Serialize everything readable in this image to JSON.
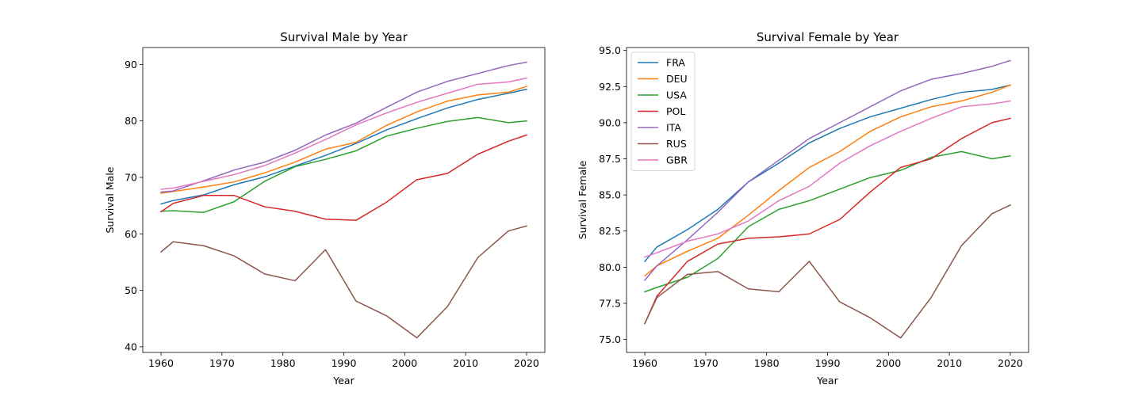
{
  "chart_data": [
    {
      "type": "line",
      "title": "Survival Male by Year",
      "xlabel": "Year",
      "ylabel": "Survival Male",
      "xlim": [
        1957,
        2023
      ],
      "ylim": [
        39,
        93
      ],
      "xticks": [
        1960,
        1970,
        1980,
        1990,
        2000,
        2010,
        2020
      ],
      "yticks": [
        40,
        50,
        60,
        70,
        80,
        90
      ],
      "ytick_labels": [
        "40",
        "50",
        "60",
        "70",
        "80",
        "90"
      ],
      "x": [
        1960,
        1962,
        1967,
        1972,
        1977,
        1982,
        1987,
        1992,
        1997,
        2002,
        2007,
        2012,
        2017,
        2020
      ],
      "legend": false,
      "series": [
        {
          "name": "FRA",
          "color": "#1f77b4",
          "values": [
            65.3,
            65.9,
            66.9,
            68.7,
            70.1,
            72.0,
            73.9,
            76.0,
            78.4,
            80.4,
            82.3,
            83.8,
            84.9,
            85.6
          ]
        },
        {
          "name": "DEU",
          "color": "#ff7f0e",
          "values": [
            67.2,
            67.5,
            68.3,
            69.2,
            70.8,
            72.7,
            75.0,
            76.2,
            79.2,
            81.6,
            83.5,
            84.6,
            85.1,
            86.1
          ]
        },
        {
          "name": "USA",
          "color": "#2ca02c",
          "values": [
            64.0,
            64.1,
            63.8,
            65.7,
            69.3,
            71.9,
            73.2,
            74.7,
            77.3,
            78.7,
            79.9,
            80.6,
            79.7,
            80.0
          ]
        },
        {
          "name": "POL",
          "color": "#d62728",
          "values": [
            63.9,
            65.4,
            66.8,
            66.8,
            64.8,
            64.0,
            62.6,
            62.4,
            65.6,
            69.6,
            70.7,
            74.1,
            76.4,
            77.5
          ]
        },
        {
          "name": "ITA",
          "color": "#9467bd",
          "values": [
            67.4,
            67.6,
            69.4,
            71.3,
            72.7,
            74.8,
            77.5,
            79.6,
            82.4,
            85.1,
            87.0,
            88.4,
            89.8,
            90.4
          ]
        },
        {
          "name": "RUS",
          "color": "#8c564b",
          "values": [
            56.8,
            58.6,
            57.9,
            56.1,
            52.9,
            51.7,
            57.2,
            48.1,
            45.5,
            41.6,
            47.1,
            55.8,
            60.5,
            61.4
          ]
        },
        {
          "name": "GBR",
          "color": "#e377c2",
          "values": [
            67.9,
            68.1,
            69.3,
            70.5,
            72.1,
            74.3,
            76.7,
            79.3,
            81.4,
            83.3,
            84.9,
            86.5,
            86.9,
            87.6
          ]
        }
      ]
    },
    {
      "type": "line",
      "title": "Survival Female by Year",
      "xlabel": "Year",
      "ylabel": "Survival Female",
      "xlim": [
        1957,
        2023
      ],
      "ylim": [
        74.1,
        95.2
      ],
      "xticks": [
        1960,
        1970,
        1980,
        1990,
        2000,
        2010,
        2020
      ],
      "yticks": [
        75.0,
        77.5,
        80.0,
        82.5,
        85.0,
        87.5,
        90.0,
        92.5,
        95.0
      ],
      "ytick_labels": [
        "75.0",
        "77.5",
        "80.0",
        "82.5",
        "85.0",
        "87.5",
        "90.0",
        "92.5",
        "95.0"
      ],
      "x": [
        1960,
        1962,
        1967,
        1972,
        1977,
        1982,
        1987,
        1992,
        1997,
        2002,
        2007,
        2012,
        2017,
        2020
      ],
      "legend": true,
      "legend_loc": "upper-left",
      "series": [
        {
          "name": "FRA",
          "color": "#1f77b4",
          "values": [
            80.4,
            81.4,
            82.6,
            84.0,
            85.9,
            87.2,
            88.6,
            89.6,
            90.4,
            91.0,
            91.6,
            92.1,
            92.3,
            92.6
          ]
        },
        {
          "name": "DEU",
          "color": "#ff7f0e",
          "values": [
            79.4,
            80.1,
            81.1,
            82.0,
            83.6,
            85.3,
            86.9,
            88.0,
            89.4,
            90.4,
            91.1,
            91.5,
            92.1,
            92.6
          ]
        },
        {
          "name": "USA",
          "color": "#2ca02c",
          "values": [
            78.3,
            78.6,
            79.3,
            80.6,
            82.8,
            84.0,
            84.6,
            85.4,
            86.2,
            86.7,
            87.6,
            88.0,
            87.5,
            87.7
          ]
        },
        {
          "name": "POL",
          "color": "#d62728",
          "values": [
            76.1,
            78.0,
            80.4,
            81.6,
            82.0,
            82.1,
            82.3,
            83.3,
            85.2,
            86.9,
            87.5,
            88.9,
            90.0,
            90.3
          ]
        },
        {
          "name": "ITA",
          "color": "#9467bd",
          "values": [
            79.1,
            80.1,
            81.9,
            83.8,
            85.9,
            87.4,
            88.9,
            90.0,
            91.1,
            92.2,
            93.0,
            93.4,
            93.9,
            94.3
          ]
        },
        {
          "name": "RUS",
          "color": "#8c564b",
          "values": [
            76.1,
            77.9,
            79.5,
            79.7,
            78.5,
            78.3,
            80.4,
            77.6,
            76.5,
            75.1,
            77.9,
            81.5,
            83.7,
            84.3
          ]
        },
        {
          "name": "GBR",
          "color": "#e377c2",
          "values": [
            80.7,
            81.0,
            81.8,
            82.3,
            83.2,
            84.6,
            85.6,
            87.2,
            88.4,
            89.4,
            90.3,
            91.1,
            91.3,
            91.5
          ]
        }
      ]
    }
  ]
}
